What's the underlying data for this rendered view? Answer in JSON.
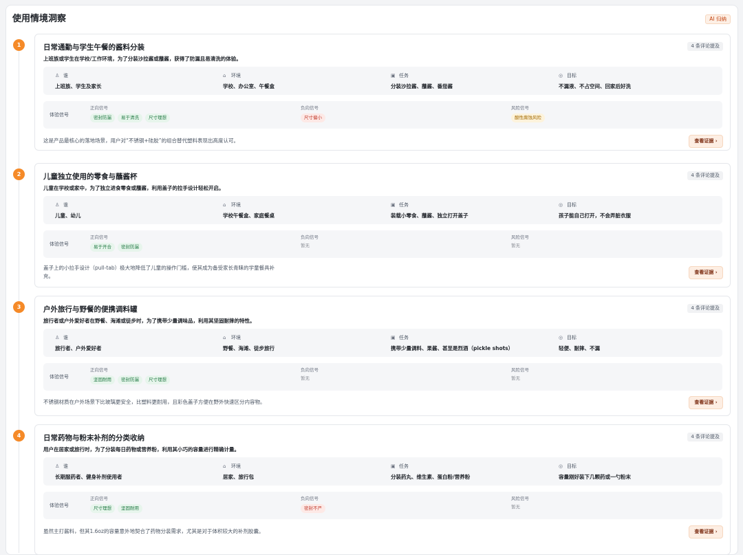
{
  "panel": {
    "title": "使用情境洞察",
    "ai_badge": "AI 归纳"
  },
  "labels": {
    "who": "谁",
    "env": "环境",
    "task": "任务",
    "goal": "目标",
    "signal_title": "体验信号",
    "positive": "正向信号",
    "negative": "负向信号",
    "risk": "风险信号",
    "none": "暂无",
    "evidence": "查看证据 ›"
  },
  "icons": {
    "who": "person-icon",
    "env": "home-icon",
    "task": "clipboard-icon",
    "goal": "target-icon"
  },
  "colors": {
    "accent": "#f58a28",
    "positive": "#237a45",
    "negative": "#c0392b",
    "risk": "#a36a00"
  },
  "scenarios": [
    {
      "num": "1",
      "title": "日常通勤与学生午餐的酱料分装",
      "subtitle": "上班族或学生在学校/工作环境，为了分装沙拉酱或蘸酱，获得了防漏且易清洗的体验。",
      "count": "4 条评论提及",
      "who": "上班族、学生及家长",
      "env": "学校、办公室、午餐盒",
      "task": "分装沙拉酱、蘸酱、番茄酱",
      "goal": "不漏液、不占空间、回家后好洗",
      "positive": [
        "密封防漏",
        "易于清洗",
        "尺寸理想"
      ],
      "negative": [
        "尺寸偏小"
      ],
      "risk": [
        "酸性腐蚀风险"
      ],
      "note": "这是产品最核心的落地场景，用户对“不锈钢+硅胶”的组合替代塑料表现出高度认可。"
    },
    {
      "num": "2",
      "title": "儿童独立使用的零食与蘸酱杯",
      "subtitle": "儿童在学校或家中，为了独立进食零食或蘸酱，利用盖子的拉手设计轻松开启。",
      "count": "4 条评论提及",
      "who": "儿童、幼儿",
      "env": "学校午餐盒、家庭餐桌",
      "task": "装载小零食、蘸酱、独立打开盖子",
      "goal": "孩子能自己打开，不会弄脏衣服",
      "positive": [
        "易于开合",
        "密封防漏"
      ],
      "negative": [],
      "risk": [],
      "note": "盖子上的小拉手设计（pull-tab）极大地降低了儿童的操作门槛，使其成为备受家长青睐的学童餐具补充。"
    },
    {
      "num": "3",
      "title": "户外旅行与野餐的便携调料罐",
      "subtitle": "旅行者或户外爱好者在野餐、海滩或徒步时，为了携带少量调味品，利用其坚固耐摔的特性。",
      "count": "4 条评论提及",
      "who": "旅行者、户外爱好者",
      "env": "野餐、海滩、徒步旅行",
      "task": "携带少量调料、果酱、甚至是烈酒（pickle shots）",
      "goal": "轻便、耐摔、不漏",
      "positive": [
        "坚固耐用",
        "密封防漏",
        "尺寸理想"
      ],
      "negative": [],
      "risk": [],
      "note": "不锈钢材质在户外场景下比玻璃更安全，比塑料更耐用，且彩色盖子方便在野外快速区分内容物。"
    },
    {
      "num": "4",
      "title": "日常药物与粉末补剂的分类收纳",
      "subtitle": "用户在居家或旅行时，为了分装每日药物或营养粉，利用其小巧的容量进行精确计量。",
      "count": "4 条评论提及",
      "who": "长期服药者、健身补剂使用者",
      "env": "居家、旅行包",
      "task": "分装药丸、维生素、蛋白粉/营养粉",
      "goal": "容量刚好装下几颗药或一勺粉末",
      "positive": [
        "尺寸理想",
        "坚固耐用"
      ],
      "negative": [
        "密封不严"
      ],
      "risk": [],
      "note": "虽然主打酱料，但其1.6oz的容量意外地契合了药物分装需求，尤其是对于体积较大的补剂胶囊。"
    }
  ]
}
